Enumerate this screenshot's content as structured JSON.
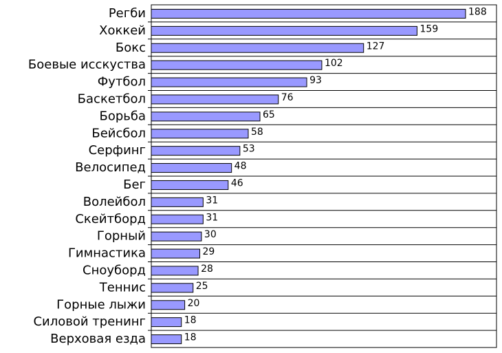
{
  "chart_data": {
    "type": "bar",
    "orientation": "horizontal",
    "title": "",
    "xlabel": "",
    "ylabel": "",
    "categories": [
      "Регби",
      "Хоккей",
      "Бокс",
      "Боевые исскуства",
      "Футбол",
      "Баскетбол",
      "Борьба",
      "Бейсбол",
      "Серфинг",
      "Велосипед",
      "Бег",
      "Волейбол",
      "Скейтборд",
      "Горный",
      "Гимнастика",
      "Сноуборд",
      "Теннис",
      "Горные лыжи",
      "Силовой тренинг",
      "Верховая езда"
    ],
    "values": [
      188,
      159,
      127,
      102,
      93,
      76,
      65,
      58,
      53,
      48,
      46,
      31,
      31,
      30,
      29,
      28,
      25,
      20,
      18,
      18
    ],
    "xlim": [
      0,
      188
    ],
    "grid": true,
    "legend": "none",
    "bar_color": "#9999ff"
  }
}
